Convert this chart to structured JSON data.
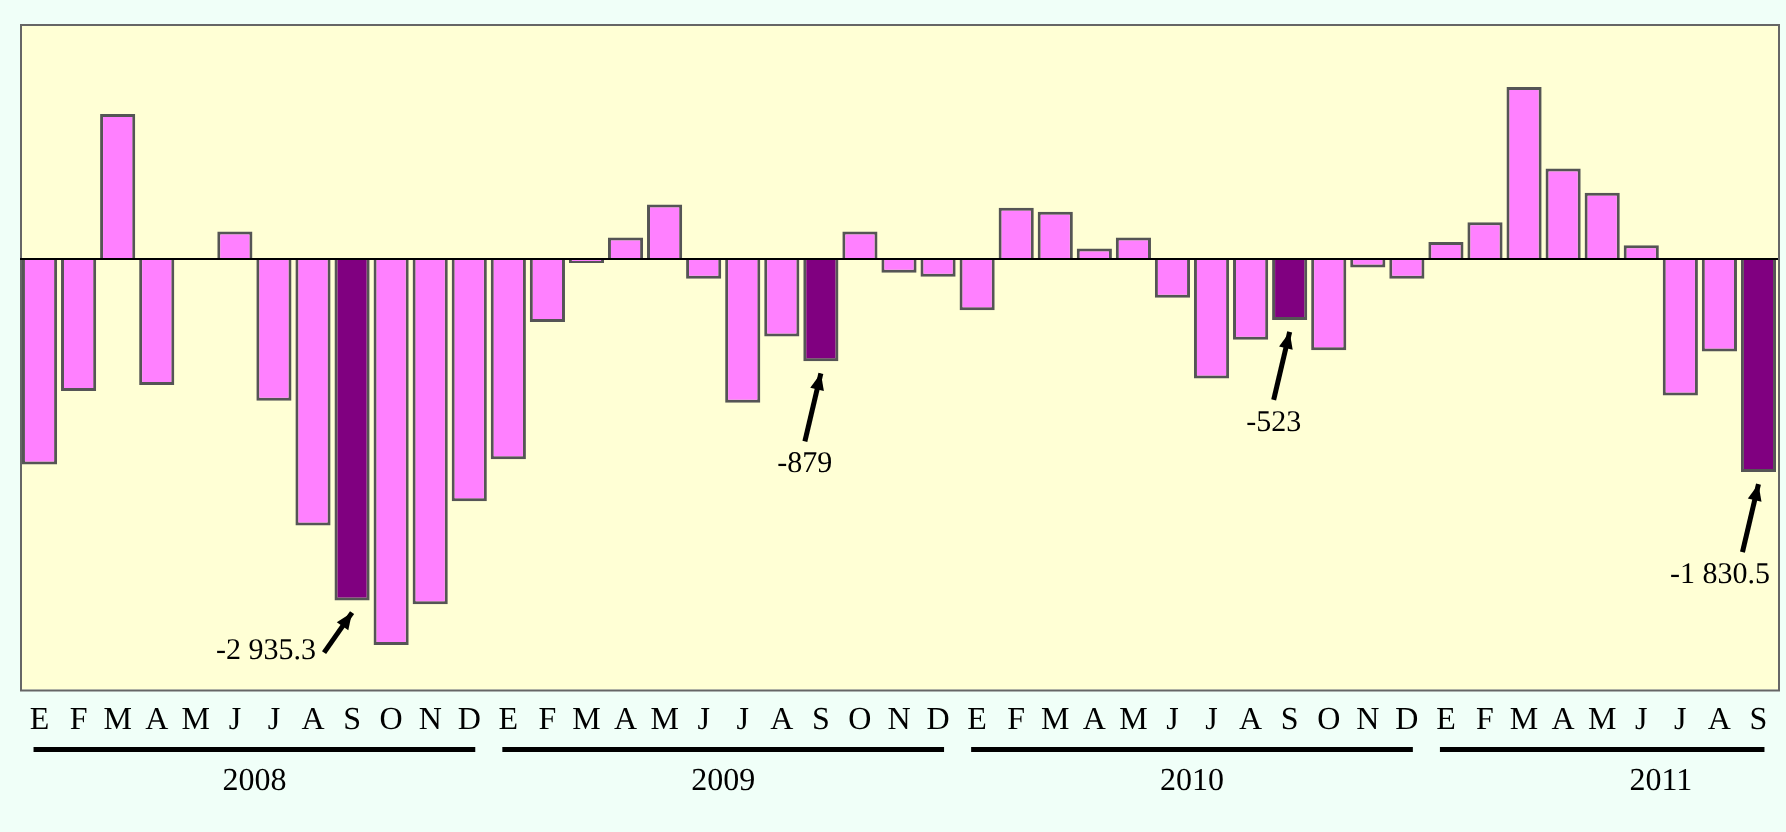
{
  "chart_data": {
    "type": "bar",
    "categories": [
      "E",
      "F",
      "M",
      "A",
      "M",
      "J",
      "J",
      "A",
      "S",
      "O",
      "N",
      "D",
      "E",
      "F",
      "M",
      "A",
      "M",
      "J",
      "J",
      "A",
      "S",
      "O",
      "N",
      "D",
      "E",
      "F",
      "M",
      "A",
      "M",
      "J",
      "J",
      "A",
      "S",
      "O",
      "N",
      "D",
      "E",
      "F",
      "M",
      "A",
      "M",
      "J",
      "J",
      "A",
      "S"
    ],
    "values": [
      -1765,
      -1134,
      1246,
      -1083,
      0,
      237,
      -1218,
      -2290,
      -2935.3,
      -3316,
      -2967,
      -2081,
      -1720,
      -541,
      -34,
      186,
      468,
      -169,
      -1235,
      -666,
      -879,
      237,
      -118,
      -152,
      -440,
      440,
      406,
      90,
      186,
      -333,
      -1026,
      -694,
      -523,
      -784,
      -73,
      -169,
      147,
      316,
      1478,
      778,
      570,
      118,
      -1173,
      -795,
      -1830.5
    ],
    "colors": [
      "#ff80ff",
      "#ff80ff",
      "#ff80ff",
      "#ff80ff",
      "#ff80ff",
      "#ff80ff",
      "#ff80ff",
      "#ff80ff",
      "#800080",
      "#ff80ff",
      "#ff80ff",
      "#ff80ff",
      "#ff80ff",
      "#ff80ff",
      "#ff80ff",
      "#ff80ff",
      "#ff80ff",
      "#ff80ff",
      "#ff80ff",
      "#ff80ff",
      "#800080",
      "#ff80ff",
      "#ff80ff",
      "#ff80ff",
      "#ff80ff",
      "#ff80ff",
      "#ff80ff",
      "#ff80ff",
      "#ff80ff",
      "#ff80ff",
      "#ff80ff",
      "#ff80ff",
      "#800080",
      "#ff80ff",
      "#ff80ff",
      "#ff80ff",
      "#ff80ff",
      "#ff80ff",
      "#ff80ff",
      "#ff80ff",
      "#ff80ff",
      "#ff80ff",
      "#ff80ff",
      "#ff80ff",
      "#800080"
    ],
    "value_labels": [
      null,
      null,
      null,
      null,
      null,
      null,
      null,
      null,
      "-2 935.3",
      null,
      null,
      null,
      null,
      null,
      null,
      null,
      null,
      null,
      null,
      null,
      "-879",
      null,
      null,
      null,
      null,
      null,
      null,
      null,
      null,
      null,
      null,
      null,
      "-523",
      null,
      null,
      null,
      null,
      null,
      null,
      null,
      null,
      null,
      null,
      null,
      "-1 830.5"
    ],
    "ylim": [
      -3700,
      2020
    ],
    "annotations": [
      "2008",
      "2009",
      "2010",
      "2011"
    ],
    "grid": false,
    "legend": false
  }
}
